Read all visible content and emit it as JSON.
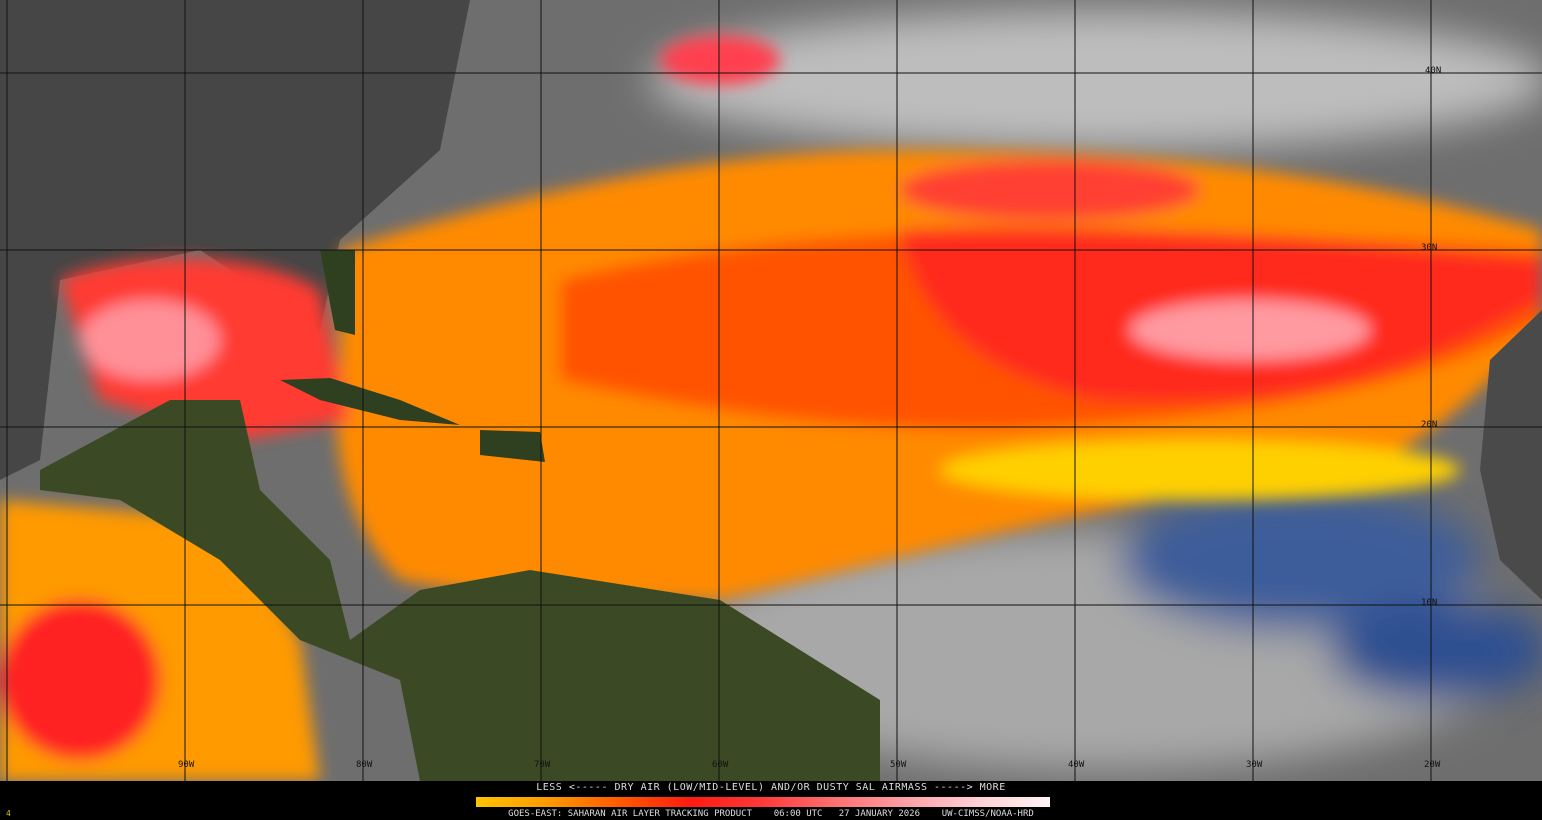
{
  "legend": {
    "title": "LESS <----- DRY AIR (LOW/MID-LEVEL) AND/OR DUSTY SAL AIRMASS -----> MORE",
    "colors": [
      "#ffc400",
      "#ff9a00",
      "#ff5a00",
      "#ff1a10",
      "#ff7070",
      "#ffa0a8",
      "#fff4f4"
    ]
  },
  "footer": {
    "satellite": "GOES-EAST:",
    "product": "SAHARAN AIR LAYER TRACKING PRODUCT",
    "time": "06:00 UTC",
    "date": "27 JANUARY 2026",
    "source": "UW-CIMSS/NOAA-HRD",
    "frame": "4"
  },
  "grid": {
    "longitudes": [
      "90W",
      "80W",
      "70W",
      "60W",
      "50W",
      "40W",
      "30W",
      "20W"
    ],
    "latitudes": [
      "40N",
      "30N",
      "20N",
      "10N"
    ]
  }
}
